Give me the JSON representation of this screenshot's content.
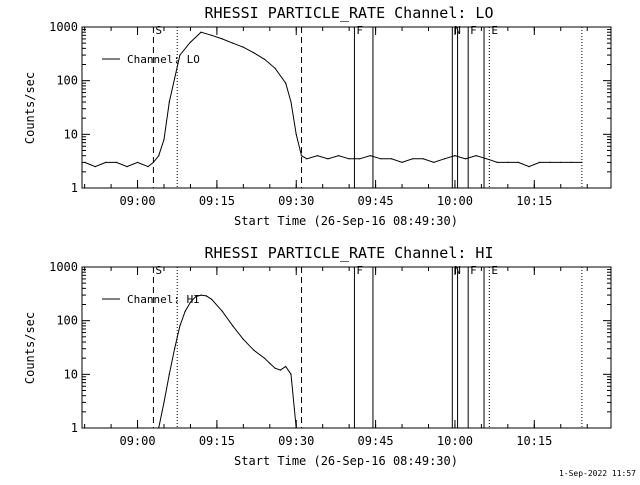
{
  "chart_data": [
    {
      "type": "line",
      "title": "RHESSI PARTICLE_RATE Channel: LO",
      "xlabel": "Start Time (26-Sep-16 08:49:30)",
      "ylabel": "Counts/sec",
      "yscale": "log",
      "ylim": [
        1,
        1000
      ],
      "xlim": [
        "08:49:30",
        "10:29:30"
      ],
      "x_ticks": [
        "09:00",
        "09:15",
        "09:30",
        "09:45",
        "10:00",
        "10:15"
      ],
      "y_ticks": [
        "1",
        "10",
        "100",
        "1000"
      ],
      "legend": "top-left",
      "grid": false,
      "series": [
        {
          "name": "Channel: LO",
          "x": [
            "08:50:00",
            "08:52:00",
            "08:54:00",
            "08:56:00",
            "08:58:00",
            "09:00:00",
            "09:02:00",
            "09:03:00",
            "09:04:00",
            "09:05:00",
            "09:06:00",
            "09:08:00",
            "09:10:00",
            "09:12:00",
            "09:14:00",
            "09:16:00",
            "09:18:00",
            "09:20:00",
            "09:22:00",
            "09:24:00",
            "09:26:00",
            "09:28:00",
            "09:29:00",
            "09:30:00",
            "09:31:00",
            "09:32:00",
            "09:34:00",
            "09:36:00",
            "09:38:00",
            "09:40:00",
            "09:42:00",
            "09:44:00",
            "09:46:00",
            "09:48:00",
            "09:50:00",
            "09:52:00",
            "09:54:00",
            "09:56:00",
            "09:58:00",
            "10:00:00",
            "10:02:00",
            "10:04:00",
            "10:06:00",
            "10:08:00",
            "10:10:00",
            "10:12:00",
            "10:14:00",
            "10:16:00",
            "10:18:00",
            "10:20:00",
            "10:22:00",
            "10:24:00"
          ],
          "values": [
            3,
            2.5,
            3,
            3,
            2.5,
            3,
            2.5,
            3,
            4,
            8,
            40,
            300,
            520,
            800,
            700,
            600,
            500,
            420,
            330,
            250,
            170,
            90,
            40,
            10,
            4,
            3.5,
            4,
            3.5,
            4,
            3.5,
            3.5,
            4,
            3.5,
            3.5,
            3,
            3.5,
            3.5,
            3,
            3.5,
            4,
            3.5,
            4,
            3.5,
            3,
            3,
            3,
            2.5,
            3,
            3,
            3,
            3,
            3
          ]
        }
      ],
      "annotations": [
        {
          "label": "S",
          "time": "09:03:00",
          "style": "dashed"
        },
        {
          "label": "",
          "time": "09:07:30",
          "style": "dotted"
        },
        {
          "label": "",
          "time": "09:31:00",
          "style": "dashed"
        },
        {
          "label": "F",
          "time": "09:41:00",
          "style": "solid"
        },
        {
          "label": "",
          "time": "09:44:30",
          "style": "solid"
        },
        {
          "label": "N",
          "time": "09:59:30",
          "style": "solid"
        },
        {
          "label": "",
          "time": "10:00:30",
          "style": "solid"
        },
        {
          "label": "F",
          "time": "10:02:30",
          "style": "solid"
        },
        {
          "label": "",
          "time": "10:05:30",
          "style": "solid"
        },
        {
          "label": "E",
          "time": "10:06:30",
          "style": "dotted"
        },
        {
          "label": "",
          "time": "10:24:00",
          "style": "dotted"
        }
      ]
    },
    {
      "type": "line",
      "title": "RHESSI PARTICLE_RATE Channel: HI",
      "xlabel": "Start Time (26-Sep-16 08:49:30)",
      "ylabel": "Counts/sec",
      "yscale": "log",
      "ylim": [
        1,
        1000
      ],
      "xlim": [
        "08:49:30",
        "10:29:30"
      ],
      "x_ticks": [
        "09:00",
        "09:15",
        "09:30",
        "09:45",
        "10:00",
        "10:15"
      ],
      "y_ticks": [
        "1",
        "10",
        "100",
        "1000"
      ],
      "legend": "top-left",
      "grid": false,
      "series": [
        {
          "name": "Channel: HI",
          "x": [
            "09:04:00",
            "09:05:00",
            "09:06:00",
            "09:07:00",
            "09:08:00",
            "09:09:00",
            "09:10:00",
            "09:11:00",
            "09:12:00",
            "09:13:00",
            "09:14:00",
            "09:16:00",
            "09:18:00",
            "09:20:00",
            "09:22:00",
            "09:24:00",
            "09:25:00",
            "09:26:00",
            "09:27:00",
            "09:28:00",
            "09:29:00",
            "09:30:00"
          ],
          "values": [
            1,
            3,
            10,
            30,
            80,
            150,
            220,
            280,
            300,
            290,
            250,
            150,
            80,
            45,
            28,
            20,
            16,
            13,
            12,
            14,
            10,
            1
          ]
        }
      ],
      "annotations": [
        {
          "label": "S",
          "time": "09:03:00",
          "style": "dashed"
        },
        {
          "label": "",
          "time": "09:07:30",
          "style": "dotted"
        },
        {
          "label": "",
          "time": "09:31:00",
          "style": "dashed"
        },
        {
          "label": "F",
          "time": "09:41:00",
          "style": "solid"
        },
        {
          "label": "",
          "time": "09:44:30",
          "style": "solid"
        },
        {
          "label": "N",
          "time": "09:59:30",
          "style": "solid"
        },
        {
          "label": "",
          "time": "10:00:30",
          "style": "solid"
        },
        {
          "label": "F",
          "time": "10:02:30",
          "style": "solid"
        },
        {
          "label": "",
          "time": "10:05:30",
          "style": "solid"
        },
        {
          "label": "E",
          "time": "10:06:30",
          "style": "dotted"
        },
        {
          "label": "",
          "time": "10:24:00",
          "style": "dotted"
        }
      ]
    }
  ],
  "footer": {
    "timestamp": "1-Sep-2022 11:57"
  }
}
